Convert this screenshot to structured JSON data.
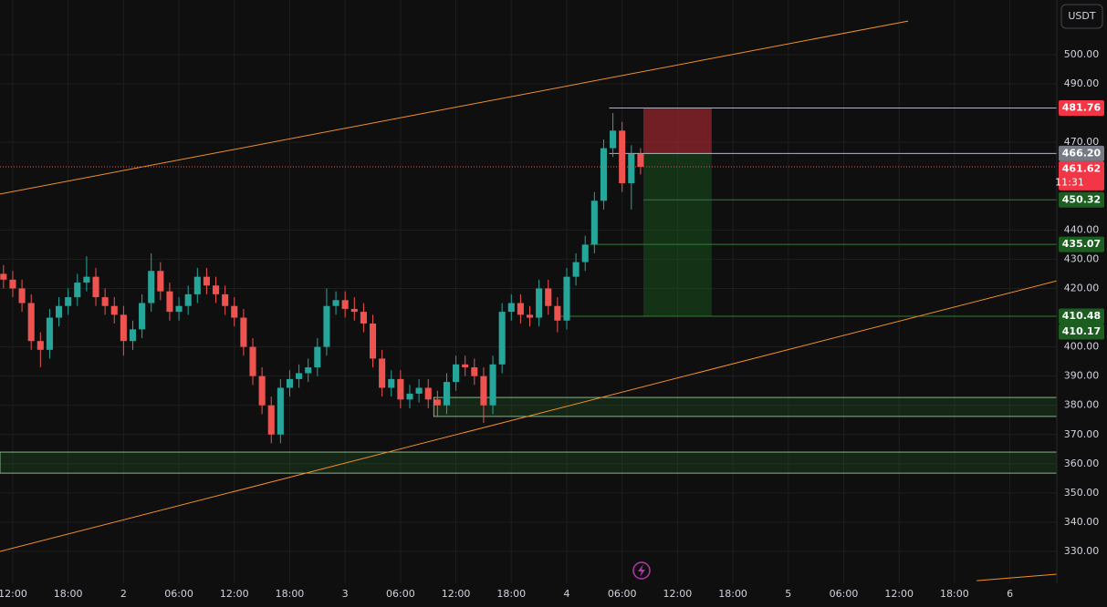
{
  "chart_data": {
    "type": "candlestick",
    "currency": "USDT",
    "countdown": "11:31",
    "xlim": [
      -1.38,
      113.08
    ],
    "ylim": [
      319.1,
      518.7
    ],
    "grid": true,
    "up_color": "#26a69a",
    "down_color": "#ef5350",
    "xticks": [
      {
        "value": 0,
        "label": "12:00"
      },
      {
        "value": 6,
        "label": "18:00"
      },
      {
        "value": 12,
        "label": "2"
      },
      {
        "value": 18,
        "label": "06:00"
      },
      {
        "value": 24,
        "label": "12:00"
      },
      {
        "value": 30,
        "label": "18:00"
      },
      {
        "value": 36,
        "label": "3"
      },
      {
        "value": 42,
        "label": "06:00"
      },
      {
        "value": 48,
        "label": "12:00"
      },
      {
        "value": 54,
        "label": "18:00"
      },
      {
        "value": 60,
        "label": "4"
      },
      {
        "value": 66,
        "label": "06:00"
      },
      {
        "value": 72,
        "label": "12:00"
      },
      {
        "value": 78,
        "label": "18:00"
      },
      {
        "value": 84,
        "label": "5"
      },
      {
        "value": 90,
        "label": "06:00"
      },
      {
        "value": 96,
        "label": "12:00"
      },
      {
        "value": 102,
        "label": "18:00"
      },
      {
        "value": 108,
        "label": "6"
      }
    ],
    "yticks": [
      {
        "value": 500,
        "label": "500.00"
      },
      {
        "value": 490,
        "label": "490.00"
      },
      {
        "value": 470,
        "label": "470.00"
      },
      {
        "value": 440,
        "label": "440.00"
      },
      {
        "value": 430,
        "label": "430.00"
      },
      {
        "value": 420,
        "label": "420.00"
      },
      {
        "value": 400,
        "label": "400.00"
      },
      {
        "value": 390,
        "label": "390.00"
      },
      {
        "value": 380,
        "label": "380.00"
      },
      {
        "value": 370,
        "label": "370.00"
      },
      {
        "value": 360,
        "label": "360.00"
      },
      {
        "value": 350,
        "label": "350.00"
      },
      {
        "value": 340,
        "label": "340.00"
      },
      {
        "value": 330,
        "label": "330.00"
      }
    ],
    "x": [
      -1,
      0,
      1,
      2,
      3,
      4,
      5,
      6,
      7,
      8,
      9,
      10,
      11,
      12,
      13,
      14,
      15,
      16,
      17,
      18,
      19,
      20,
      21,
      22,
      23,
      24,
      25,
      26,
      27,
      28,
      29,
      30,
      31,
      32,
      33,
      34,
      35,
      36,
      37,
      38,
      39,
      40,
      41,
      42,
      43,
      44,
      45,
      46,
      47,
      48,
      49,
      50,
      51,
      52,
      53,
      54,
      55,
      56,
      57,
      58,
      59,
      60,
      61,
      62,
      63,
      64,
      65,
      66,
      67,
      68
    ],
    "open": [
      425,
      423,
      420,
      415,
      402,
      399,
      410,
      414,
      417,
      422,
      424,
      417,
      414,
      411,
      402,
      406,
      415,
      426,
      419,
      412,
      414,
      418,
      424,
      421,
      418,
      414,
      410,
      400,
      390,
      380,
      370,
      386,
      389,
      391,
      393,
      400,
      414,
      416,
      413,
      412,
      408,
      396,
      386,
      389,
      382,
      384,
      386,
      382,
      380,
      388,
      394,
      393,
      390,
      380,
      394,
      412,
      415,
      411,
      410,
      420,
      414,
      409,
      424,
      429,
      435,
      450,
      468,
      474,
      456,
      466
    ],
    "high": [
      428,
      426,
      423,
      418,
      405,
      413,
      417,
      420,
      425,
      431,
      427,
      420,
      417,
      414,
      409,
      418,
      432,
      429,
      422,
      417,
      421,
      427,
      427,
      424,
      421,
      417,
      413,
      403,
      393,
      383,
      389,
      392,
      394,
      396,
      403,
      420,
      419,
      419,
      417,
      415,
      411,
      399,
      392,
      392,
      387,
      389,
      389,
      385,
      391,
      397,
      397,
      396,
      393,
      397,
      415,
      418,
      418,
      414,
      423,
      423,
      417,
      427,
      432,
      438,
      453,
      471,
      480,
      477,
      469,
      468
    ],
    "low": [
      420,
      417,
      412,
      399,
      393,
      396,
      407,
      411,
      414,
      419,
      414,
      411,
      408,
      397,
      399,
      403,
      412,
      416,
      409,
      409,
      411,
      415,
      418,
      415,
      411,
      407,
      397,
      387,
      377,
      367,
      367,
      383,
      386,
      388,
      390,
      397,
      411,
      410,
      409,
      405,
      393,
      383,
      383,
      379,
      379,
      381,
      379,
      376,
      377,
      385,
      390,
      387,
      374,
      377,
      391,
      409,
      408,
      407,
      407,
      411,
      405,
      406,
      421,
      426,
      432,
      447,
      465,
      453,
      447,
      459
    ],
    "close": [
      423,
      420,
      415,
      402,
      399,
      410,
      414,
      417,
      422,
      424,
      417,
      414,
      411,
      402,
      406,
      415,
      426,
      419,
      412,
      414,
      418,
      424,
      421,
      418,
      414,
      410,
      400,
      390,
      380,
      370,
      386,
      389,
      391,
      393,
      400,
      414,
      416,
      413,
      412,
      408,
      396,
      386,
      389,
      382,
      384,
      386,
      382,
      380,
      388,
      394,
      393,
      390,
      380,
      394,
      412,
      415,
      411,
      410,
      420,
      414,
      409,
      424,
      429,
      435,
      450,
      468,
      474,
      456,
      466,
      461.62
    ],
    "trendlines": [
      {
        "color": "#f0902a",
        "x": [
          -1.38,
          96.97
        ],
        "y": [
          452.3,
          511.5
        ]
      },
      {
        "color": "#f0902a",
        "x": [
          -1.38,
          113.08
        ],
        "y": [
          330,
          422.6
        ]
      },
      {
        "color": "#f0902a",
        "x": [
          104.4,
          113.08
        ],
        "y": [
          320.0,
          322.2
        ]
      }
    ],
    "zones": [
      {
        "top": 382.7,
        "bottom": 376.2,
        "from": 45.6
      },
      {
        "top": 364,
        "bottom": 356.8,
        "from": -1.38
      }
    ],
    "position": {
      "from": 68.3,
      "to": 75.7,
      "entry": 466.2,
      "stop": 481.76,
      "target": 410.48
    },
    "levels": [
      {
        "value": 481.76,
        "from": 64.6,
        "color": "#b2b5be"
      },
      {
        "value": 466.2,
        "from": 64.6,
        "color": "#b2b5be"
      },
      {
        "value": 450.32,
        "from": 68.3,
        "color": "#2e7d32"
      },
      {
        "value": 435.07,
        "from": 62.5,
        "color": "#2e7d32"
      },
      {
        "value": 410.48,
        "from": 58.8,
        "color": "#2e7d32"
      }
    ],
    "price_tags": [
      {
        "value": 481.76,
        "label": "481.76",
        "color": "#f23645"
      },
      {
        "value": 466.2,
        "label": "466.20",
        "color": "#787b86"
      },
      {
        "value": 461.62,
        "label": "461.62",
        "color": "#f23645"
      },
      {
        "value": 450.32,
        "label": "450.32",
        "color": "#1b5e20"
      },
      {
        "value": 435.07,
        "label": "435.07",
        "color": "#1b5e20"
      },
      {
        "value": 410.48,
        "label": "410.48",
        "color": "#1b5e20"
      },
      {
        "value": 410.17,
        "label": "410.17",
        "color": "#1b5e20"
      }
    ]
  }
}
